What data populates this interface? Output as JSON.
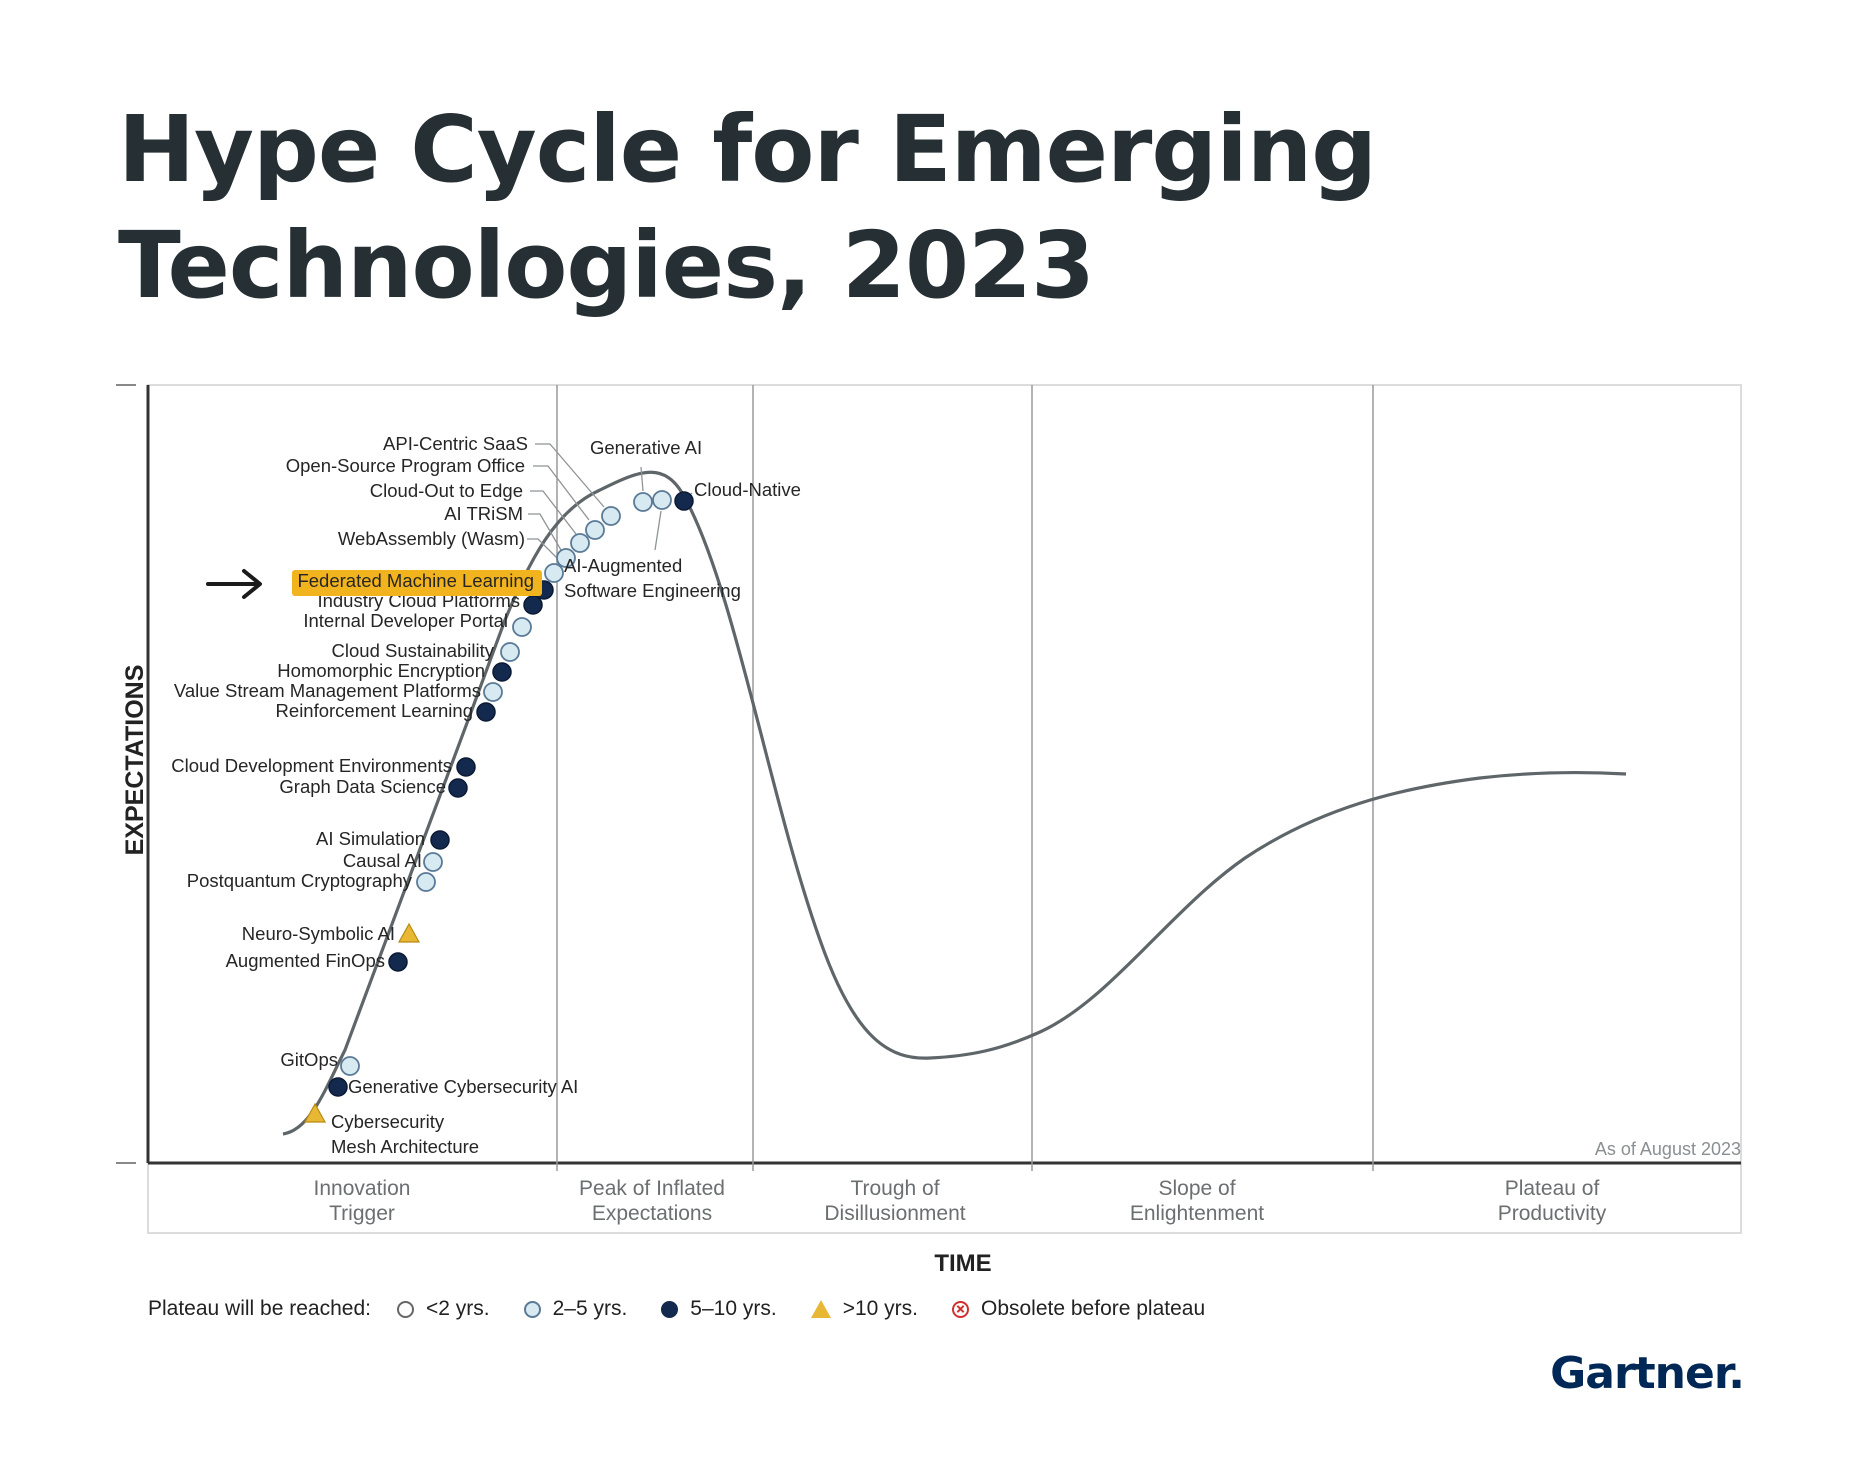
{
  "title": {
    "line1": "Hype Cycle for Emerging",
    "line2": "Technologies, 2023"
  },
  "colors": {
    "lt2": "#ffffff",
    "y2to5": "#d7e9f1",
    "y5to10": "#13294d",
    "gt10": "#e8b835",
    "obsolete": "#d0312d",
    "highlight": "#f2b41e",
    "curve": "#5f6669"
  },
  "chart_data": {
    "type": "hype-cycle",
    "ylabel": "EXPECTATIONS",
    "xlabel": "TIME",
    "as_of": "As of August 2023",
    "phases": [
      {
        "line1": "Innovation",
        "line2": "Trigger"
      },
      {
        "line1": "Peak of Inflated",
        "line2": "Expectations"
      },
      {
        "line1": "Trough of",
        "line2": "Disillusionment"
      },
      {
        "line1": "Slope of",
        "line2": "Enlightenment"
      },
      {
        "line1": "Plateau of",
        "line2": "Productivity"
      }
    ],
    "highlighted": "Federated Machine Learning",
    "technologies": [
      {
        "name": "Cybersecurity Mesh Architecture",
        "lines": [
          "Cybersecurity",
          "Mesh Architecture"
        ],
        "plateau": ">10 yrs."
      },
      {
        "name": "Generative Cybersecurity AI",
        "lines": [
          "Generative Cybersecurity AI"
        ],
        "plateau": "5-10 yrs."
      },
      {
        "name": "GitOps",
        "lines": [
          "GitOps"
        ],
        "plateau": "2-5 yrs."
      },
      {
        "name": "Augmented FinOps",
        "lines": [
          "Augmented FinOps"
        ],
        "plateau": "5-10 yrs."
      },
      {
        "name": "Neuro-Symbolic AI",
        "lines": [
          "Neuro-Symbolic AI"
        ],
        "plateau": ">10 yrs."
      },
      {
        "name": "Postquantum Cryptography",
        "lines": [
          "Postquantum Cryptography"
        ],
        "plateau": "2-5 yrs."
      },
      {
        "name": "Causal AI",
        "lines": [
          "Causal AI"
        ],
        "plateau": "2-5 yrs."
      },
      {
        "name": "AI Simulation",
        "lines": [
          "AI Simulation"
        ],
        "plateau": "5-10 yrs."
      },
      {
        "name": "Graph Data Science",
        "lines": [
          "Graph Data Science"
        ],
        "plateau": "5-10 yrs."
      },
      {
        "name": "Cloud Development Environments",
        "lines": [
          "Cloud Development Environments"
        ],
        "plateau": "5-10 yrs."
      },
      {
        "name": "Reinforcement Learning",
        "lines": [
          "Reinforcement Learning"
        ],
        "plateau": "5-10 yrs."
      },
      {
        "name": "Value Stream Management Platforms",
        "lines": [
          "Value Stream Management Platforms"
        ],
        "plateau": "2-5 yrs."
      },
      {
        "name": "Homomorphic Encryption",
        "lines": [
          "Homomorphic Encryption"
        ],
        "plateau": "5-10 yrs."
      },
      {
        "name": "Cloud Sustainability",
        "lines": [
          "Cloud Sustainability"
        ],
        "plateau": "2-5 yrs."
      },
      {
        "name": "Internal Developer Portal",
        "lines": [
          "Internal Developer Portal"
        ],
        "plateau": "2-5 yrs."
      },
      {
        "name": "Industry Cloud Platforms",
        "lines": [
          "Industry Cloud Platforms"
        ],
        "plateau": "5-10 yrs."
      },
      {
        "name": "Federated Machine Learning",
        "lines": [
          "Federated Machine Learning"
        ],
        "plateau": "5-10 yrs."
      },
      {
        "name": "WebAssembly (Wasm)",
        "lines": [
          "WebAssembly (Wasm)"
        ],
        "plateau": "2-5 yrs."
      },
      {
        "name": "AI TRiSM",
        "lines": [
          "AI TRiSM"
        ],
        "plateau": "2-5 yrs."
      },
      {
        "name": "Cloud-Out to Edge",
        "lines": [
          "Cloud-Out to Edge"
        ],
        "plateau": "2-5 yrs."
      },
      {
        "name": "Open-Source Program Office",
        "lines": [
          "Open-Source Program Office"
        ],
        "plateau": "2-5 yrs."
      },
      {
        "name": "API-Centric SaaS",
        "lines": [
          "API-Centric SaaS"
        ],
        "plateau": "2-5 yrs."
      },
      {
        "name": "Generative AI",
        "lines": [
          "Generative AI"
        ],
        "plateau": "2-5 yrs."
      },
      {
        "name": "AI-Augmented Software Engineering",
        "lines": [
          "AI-Augmented",
          "Software Engineering"
        ],
        "plateau": "2-5 yrs."
      },
      {
        "name": "Cloud-Native",
        "lines": [
          "Cloud-Native"
        ],
        "plateau": "5-10 yrs."
      }
    ]
  },
  "legend": {
    "label": "Plateau will be reached:",
    "items": [
      {
        "key": "lt2",
        "label": "<2 yrs."
      },
      {
        "key": "y2to5",
        "label": "2–5 yrs."
      },
      {
        "key": "y5to10",
        "label": "5–10 yrs."
      },
      {
        "key": "gt10",
        "label": ">10 yrs."
      },
      {
        "key": "obsolete",
        "label": "Obsolete before plateau"
      }
    ]
  },
  "brand": "Gartner."
}
